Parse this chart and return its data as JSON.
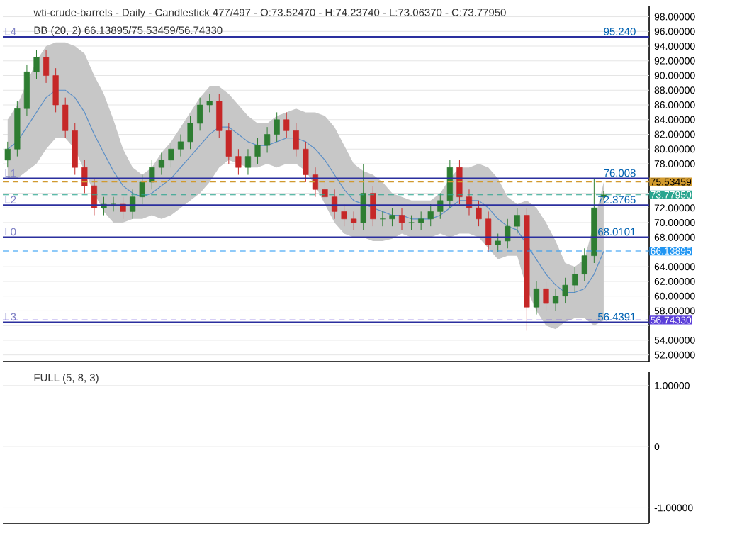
{
  "chart_data": [
    {
      "type": "candlestick",
      "title": "wti-crude-barrels - Daily - Candlestick    477/497 - O:73.52470 - H:74.23740 - L:73.06370 - C:73.77950",
      "subtitle": "BB (20, 2)    66.13895/75.53459/56.74330",
      "categories": [
        null,
        null,
        null,
        null,
        null,
        null,
        null,
        null,
        null,
        null,
        null,
        null,
        null,
        null,
        null,
        null,
        null,
        null,
        null,
        null,
        null,
        null,
        null,
        null,
        null,
        null,
        null,
        null,
        null,
        null,
        null,
        null,
        null,
        null,
        null,
        null,
        null,
        null,
        null,
        null,
        null,
        null,
        null,
        null,
        null,
        null,
        null,
        null,
        null,
        null,
        null,
        null,
        null,
        null,
        null,
        null,
        null,
        null,
        null,
        null,
        null,
        null,
        null
      ],
      "ohlc": [
        [
          78.5,
          81,
          77.5,
          80
        ],
        [
          80,
          86.5,
          79,
          85.5
        ],
        [
          85.5,
          91.5,
          84.5,
          90.5
        ],
        [
          90.5,
          93.5,
          89.5,
          92.5
        ],
        [
          92.5,
          93.5,
          89,
          90
        ],
        [
          90,
          91,
          85,
          86
        ],
        [
          86,
          87,
          81.5,
          82.5
        ],
        [
          82.5,
          83.5,
          76.5,
          77.5
        ],
        [
          77.5,
          78.5,
          74,
          75
        ],
        [
          75,
          76,
          71,
          72
        ],
        [
          72,
          73.5,
          71,
          72.5
        ],
        [
          72.5,
          73.5,
          71.5,
          72.5
        ],
        [
          72.5,
          73.5,
          70.5,
          71.5
        ],
        [
          71.5,
          74.5,
          70.5,
          73.5
        ],
        [
          73.5,
          76.5,
          72.5,
          75.5
        ],
        [
          75.5,
          78.5,
          74.5,
          77.5
        ],
        [
          77.5,
          79.5,
          76.5,
          78.5
        ],
        [
          78.5,
          81,
          77.5,
          80
        ],
        [
          80,
          82,
          79,
          81
        ],
        [
          81,
          84.5,
          80,
          83.5
        ],
        [
          83.5,
          87,
          82.5,
          86
        ],
        [
          86,
          87.5,
          85,
          86.5
        ],
        [
          86.5,
          87.5,
          81.5,
          82.5
        ],
        [
          82.5,
          83.5,
          78,
          79
        ],
        [
          79,
          80,
          76.5,
          77.5
        ],
        [
          77.5,
          80,
          76.5,
          79
        ],
        [
          79,
          81.5,
          78,
          80.5
        ],
        [
          80.5,
          83,
          79.5,
          82
        ],
        [
          82,
          85,
          81,
          84
        ],
        [
          84,
          85,
          81.5,
          82.5
        ],
        [
          82.5,
          83.5,
          79,
          80
        ],
        [
          80,
          81,
          75.5,
          76.5
        ],
        [
          76.5,
          77.5,
          73.5,
          74.5
        ],
        [
          74.5,
          75.5,
          72.5,
          73.5
        ],
        [
          73.5,
          74.5,
          70.5,
          71.5
        ],
        [
          71.5,
          72.5,
          69.5,
          70.5
        ],
        [
          70.5,
          71.5,
          69,
          70
        ],
        [
          70,
          78,
          69,
          74
        ],
        [
          74,
          75,
          69.5,
          70.5
        ],
        [
          70.5,
          71.5,
          69.5,
          70.5
        ],
        [
          70.5,
          72,
          69.5,
          71
        ],
        [
          71,
          72,
          69,
          70
        ],
        [
          70,
          71,
          69,
          70
        ],
        [
          70,
          71.5,
          69,
          70.5
        ],
        [
          70.5,
          72.5,
          69.5,
          71.5
        ],
        [
          71.5,
          74,
          70.5,
          73
        ],
        [
          73,
          78.5,
          72,
          77.5
        ],
        [
          77.5,
          78.5,
          72.5,
          73.5
        ],
        [
          73.5,
          74.5,
          71,
          72
        ],
        [
          72,
          73,
          69.5,
          70.5
        ],
        [
          70.5,
          71.5,
          66,
          67
        ],
        [
          67,
          68.5,
          66,
          67.5
        ],
        [
          67.5,
          70.5,
          66.5,
          69.5
        ],
        [
          69.5,
          72,
          68.5,
          71
        ],
        [
          71,
          72,
          55.3,
          58.5
        ],
        [
          58.5,
          62,
          57.5,
          61
        ],
        [
          61,
          62,
          58,
          59
        ],
        [
          59,
          61,
          58,
          60
        ],
        [
          60,
          62.5,
          59,
          61.5
        ],
        [
          61.5,
          64,
          60.5,
          63
        ],
        [
          63,
          66.5,
          62,
          65.5
        ],
        [
          65.5,
          76,
          64.5,
          72
        ],
        [
          73.5247,
          74.2374,
          73.0637,
          73.7795
        ]
      ],
      "series": [
        {
          "type": "line",
          "color": "#5b8fc7",
          "values": [
            80,
            81,
            83,
            85,
            87,
            88,
            88,
            87,
            85,
            82,
            79.5,
            77,
            75,
            74,
            73.5,
            74,
            75,
            76,
            77.5,
            79,
            80.5,
            82,
            83,
            83,
            82,
            81,
            80.5,
            80.5,
            81,
            81.5,
            81.5,
            81,
            80,
            78.5,
            76.5,
            74.5,
            73,
            72.5,
            72,
            71.5,
            71,
            71,
            70.5,
            70.5,
            70.5,
            71,
            72,
            73,
            73,
            73,
            72,
            70.5,
            69.5,
            69,
            67,
            65,
            63,
            61.5,
            60.5,
            60.5,
            61,
            63,
            66.1
          ],
          "upper": [
            84,
            86,
            89,
            92,
            94,
            94.5,
            94.5,
            94,
            93,
            90,
            87.5,
            84,
            80,
            77.5,
            76.5,
            77.5,
            79.5,
            81,
            83,
            85,
            87,
            88.5,
            88.5,
            87.5,
            86,
            84.5,
            83.5,
            83.5,
            84.5,
            85,
            85.5,
            85,
            85,
            84.5,
            83,
            80.5,
            78,
            77,
            76.5,
            75.5,
            74,
            73.5,
            73,
            73,
            73,
            74,
            76,
            77.5,
            77.5,
            78,
            77.5,
            76,
            73.5,
            72.5,
            73,
            72,
            70,
            67.5,
            64.5,
            64,
            65,
            70,
            75.5
          ],
          "lower": [
            76,
            76,
            77,
            78,
            80,
            81.5,
            81.5,
            80,
            77,
            74,
            71.5,
            70,
            70,
            70.5,
            70.5,
            71,
            70.5,
            71,
            72,
            73,
            74,
            75.5,
            77.5,
            78.5,
            78,
            77.5,
            77.5,
            78,
            77.5,
            78,
            78,
            77,
            75,
            72.5,
            70,
            68.5,
            68,
            68,
            67.5,
            67.5,
            67.8,
            68.5,
            68,
            68,
            68,
            68.5,
            68,
            68.5,
            68.5,
            68,
            66.5,
            65,
            65.5,
            65.5,
            61,
            58,
            56,
            55.5,
            56.5,
            57,
            57,
            56,
            56.7
          ]
        }
      ],
      "ylim": [
        51.1,
        99.5
      ],
      "yticks": [
        {
          "value": 52,
          "label": "52.00000"
        },
        {
          "value": 54,
          "label": "54.00000"
        },
        {
          "value": 56,
          "label": null
        },
        {
          "value": 58,
          "label": "58.00000"
        },
        {
          "value": 60,
          "label": "60.00000"
        },
        {
          "value": 62,
          "label": "62.00000"
        },
        {
          "value": 64,
          "label": "64.00000"
        },
        {
          "value": 66,
          "label": null
        },
        {
          "value": 68,
          "label": "68.00000"
        },
        {
          "value": 70,
          "label": "70.00000"
        },
        {
          "value": 72,
          "label": "72.00000"
        },
        {
          "value": 74,
          "label": null
        },
        {
          "value": 78,
          "label": "78.00000"
        },
        {
          "value": 80,
          "label": "80.00000"
        },
        {
          "value": 82,
          "label": "82.00000"
        },
        {
          "value": 84,
          "label": "84.00000"
        },
        {
          "value": 86,
          "label": "86.00000"
        },
        {
          "value": 88,
          "label": "88.00000"
        },
        {
          "value": 90,
          "label": "90.00000"
        },
        {
          "value": 92,
          "label": "92.00000"
        },
        {
          "value": 94,
          "label": "94.00000"
        },
        {
          "value": 96,
          "label": "96.00000"
        },
        {
          "value": 98,
          "label": "98.00000"
        }
      ],
      "grid": "y",
      "ref_lines": [
        {
          "axis": "y",
          "value": 95.24,
          "label": "L4",
          "color": "#2b2f9e"
        },
        {
          "axis": "y",
          "value": 76.008,
          "label": "L1",
          "color": "#2b2f9e"
        },
        {
          "axis": "y",
          "value": 72.3765,
          "label": "L2",
          "color": "#2b2f9e"
        },
        {
          "axis": "y",
          "value": 68.0101,
          "label": "L0",
          "color": "#2b2f9e"
        },
        {
          "axis": "y",
          "value": 56.4391,
          "label": "L3",
          "color": "#2b2f9e"
        },
        {
          "axis": "y",
          "value": 75.53459,
          "label": "75.53459",
          "color": "#d19a2f",
          "line_style": "dashed"
        },
        {
          "axis": "y",
          "value": 73.7795,
          "label": "73.77950",
          "color": "#2aa58f",
          "line_style": "dashed"
        },
        {
          "axis": "y",
          "value": 66.13895,
          "label": "66.13895",
          "color": "#2196f3",
          "line_style": "dashed"
        },
        {
          "axis": "y",
          "value": 56.7433,
          "label": "56.74330",
          "color": "#5b3fd9",
          "line_style": "dashed"
        }
      ],
      "annotations": [
        {
          "text": "95.240",
          "y": 95.24
        },
        {
          "text": "76.008",
          "y": 76.008
        },
        {
          "text": "72.3765",
          "y": 72.3765
        },
        {
          "text": "68.0101",
          "y": 68.0101
        },
        {
          "text": "56.4391",
          "y": 56.4391
        }
      ]
    },
    {
      "type": "line",
      "title": "FULL (5, 8, 3)",
      "categories": [
        null,
        null
      ],
      "values": [
        null,
        null
      ],
      "ylim": [
        -1.25,
        1.23
      ],
      "yticks": [
        {
          "value": 1,
          "label": "1.00000"
        },
        {
          "value": 0,
          "label": "0"
        },
        {
          "value": -1,
          "label": "-1.00000"
        }
      ],
      "grid": "y"
    }
  ]
}
